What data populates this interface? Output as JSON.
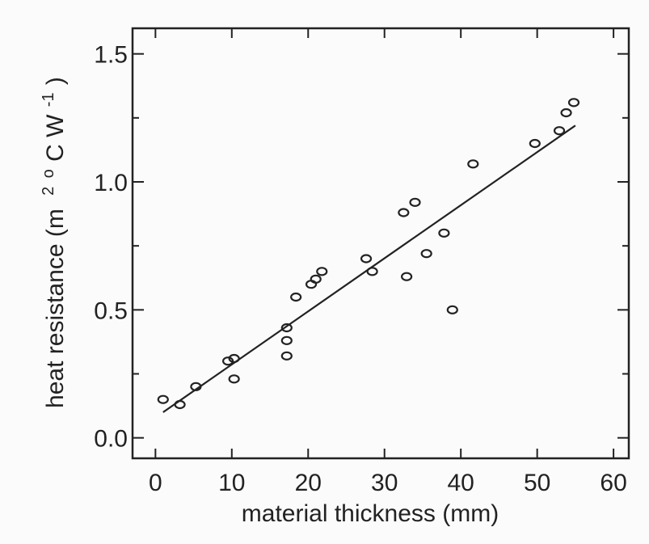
{
  "chart_data": {
    "type": "scatter",
    "xlabel": "material thickness (mm)",
    "ylabel": {
      "prefix": "heat resistance (m",
      "sup1": "2",
      "mid": "o",
      "unit": "C W",
      "sup2": "-1",
      "suffix": ")"
    },
    "xlim": [
      -3,
      62
    ],
    "ylim": [
      -0.08,
      1.6
    ],
    "x_ticks": [
      0,
      10,
      20,
      30,
      40,
      50,
      60
    ],
    "x_tick_labels": [
      "0",
      "10",
      "20",
      "30",
      "40",
      "50",
      "60"
    ],
    "y_ticks": [
      0.0,
      0.5,
      1.0,
      1.5
    ],
    "y_tick_labels": [
      "0.0",
      "0.5",
      "1.0",
      "1.5"
    ],
    "grid": false,
    "colors": {
      "ink": "#222222",
      "background": "#fbfbfb"
    },
    "points": [
      {
        "x": 1.0,
        "y": 0.15
      },
      {
        "x": 3.2,
        "y": 0.13
      },
      {
        "x": 5.3,
        "y": 0.2
      },
      {
        "x": 9.5,
        "y": 0.3
      },
      {
        "x": 10.3,
        "y": 0.31
      },
      {
        "x": 10.3,
        "y": 0.23
      },
      {
        "x": 17.2,
        "y": 0.43
      },
      {
        "x": 17.2,
        "y": 0.38
      },
      {
        "x": 17.2,
        "y": 0.32
      },
      {
        "x": 18.4,
        "y": 0.55
      },
      {
        "x": 20.4,
        "y": 0.6
      },
      {
        "x": 21.0,
        "y": 0.62
      },
      {
        "x": 21.8,
        "y": 0.65
      },
      {
        "x": 27.6,
        "y": 0.7
      },
      {
        "x": 28.4,
        "y": 0.65
      },
      {
        "x": 32.5,
        "y": 0.88
      },
      {
        "x": 32.9,
        "y": 0.63
      },
      {
        "x": 34.0,
        "y": 0.92
      },
      {
        "x": 35.5,
        "y": 0.72
      },
      {
        "x": 37.8,
        "y": 0.8
      },
      {
        "x": 38.9,
        "y": 0.5
      },
      {
        "x": 41.6,
        "y": 1.07
      },
      {
        "x": 49.7,
        "y": 1.15
      },
      {
        "x": 52.9,
        "y": 1.2
      },
      {
        "x": 53.8,
        "y": 1.27
      },
      {
        "x": 54.8,
        "y": 1.31
      }
    ],
    "fit_line": {
      "x": [
        1.0,
        55.0
      ],
      "y": [
        0.1,
        1.22
      ]
    }
  }
}
